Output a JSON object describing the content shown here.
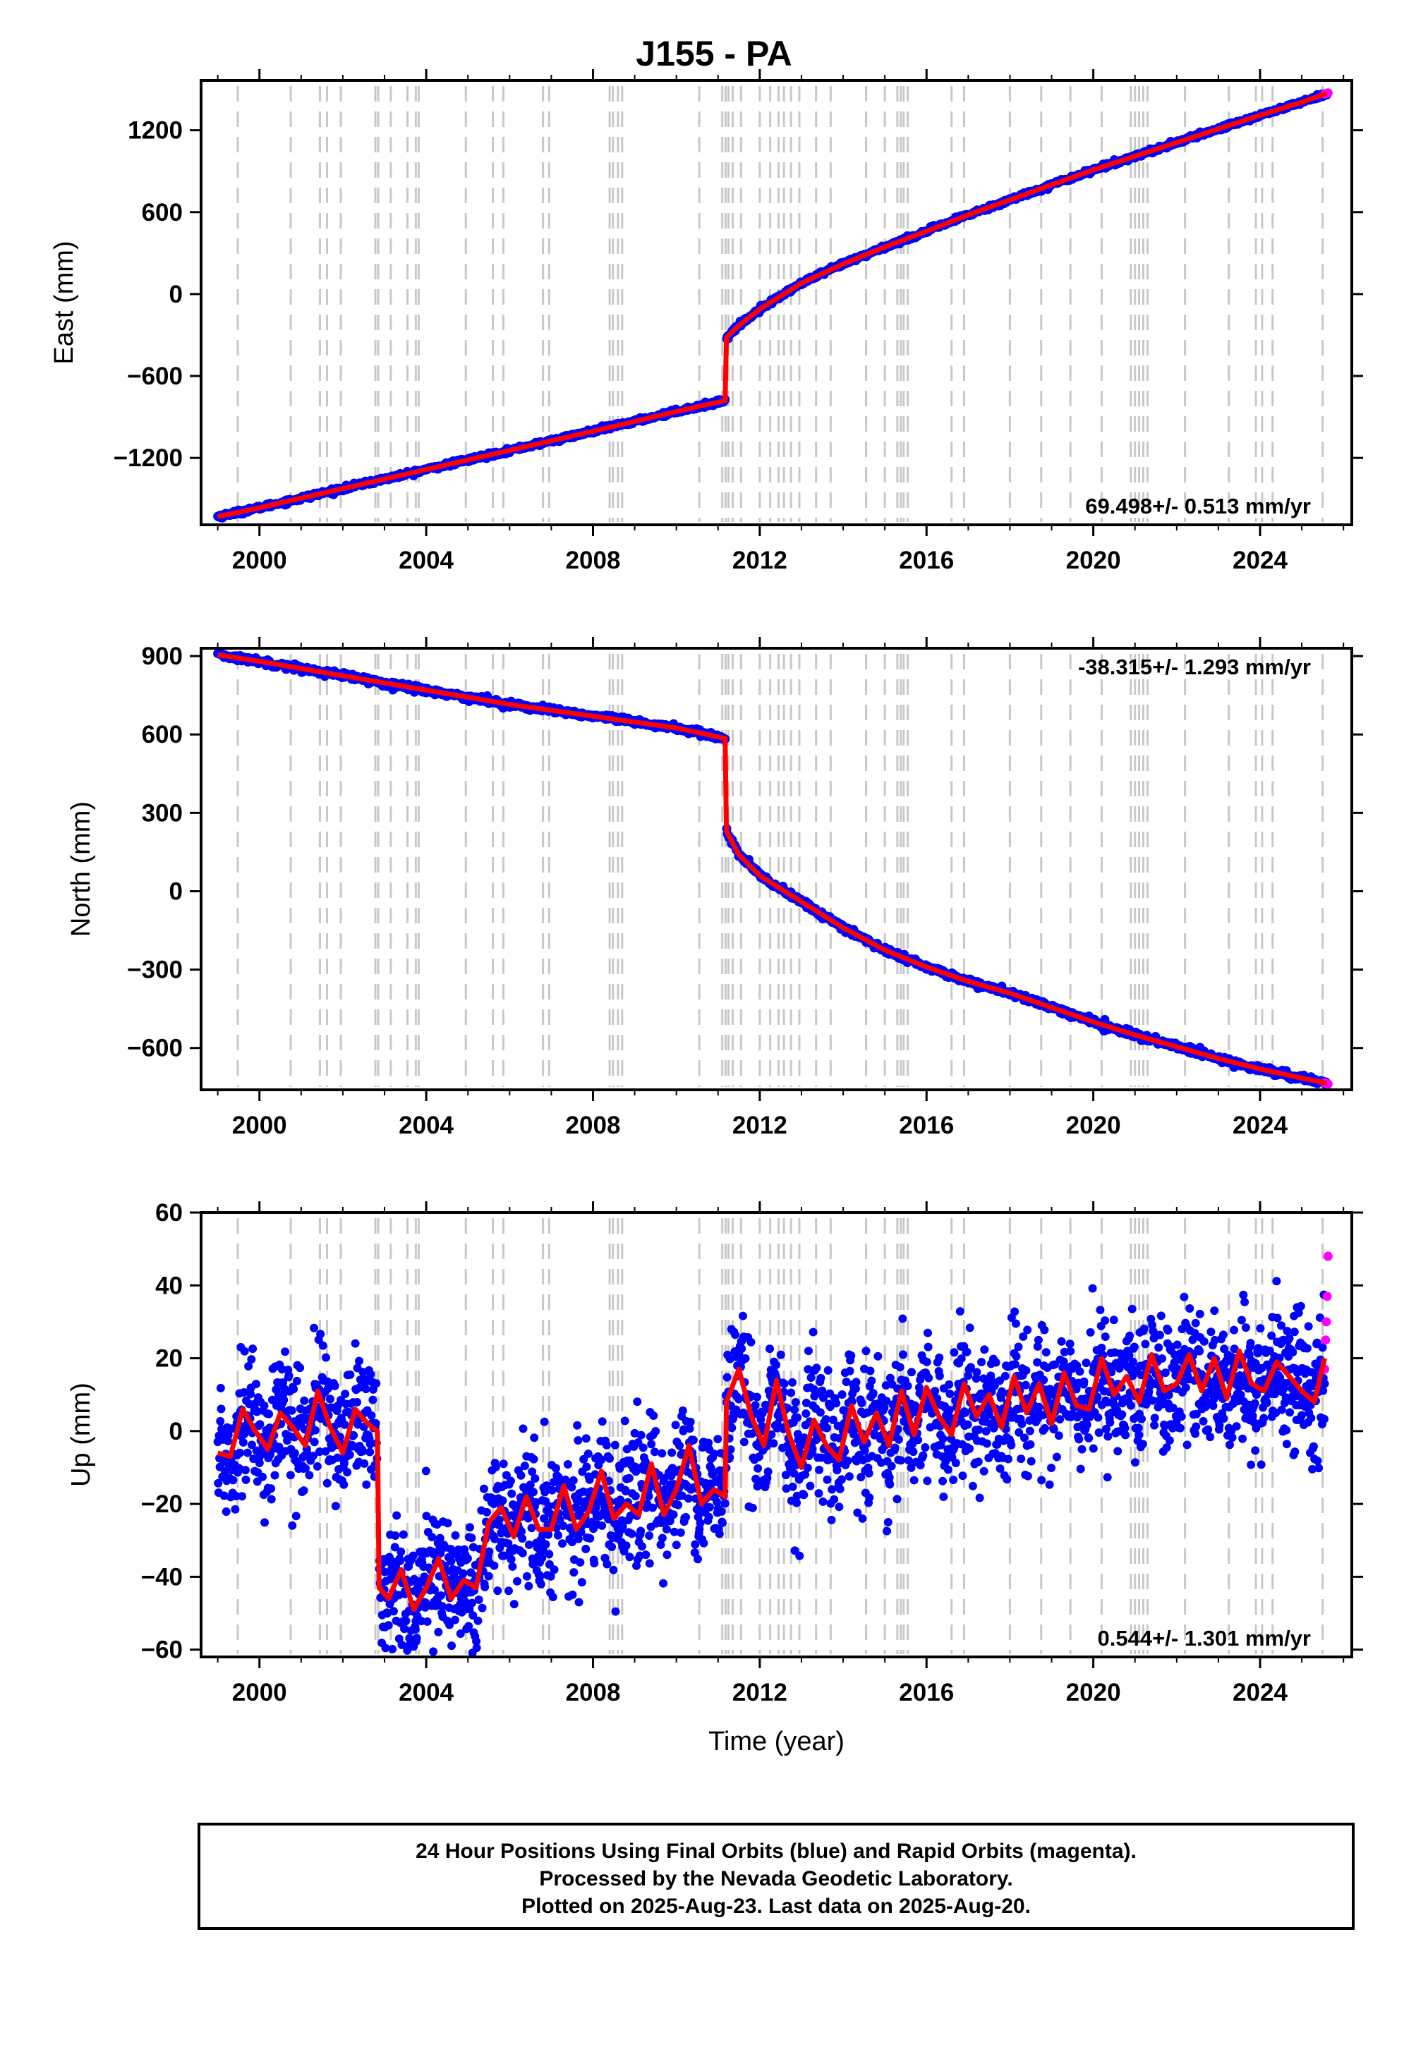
{
  "title": "J155 - PA",
  "footer": {
    "line1": "24 Hour Positions Using Final Orbits (blue) and Rapid Orbits (magenta).",
    "line2": "Processed by the Nevada Geodetic Laboratory.",
    "line3": "Plotted on 2025-Aug-23. Last data on 2025-Aug-20."
  },
  "colors": {
    "final_orbits": "#0000ff",
    "rapid_orbits": "#ff00ff",
    "model": "#ff0000",
    "event_lines": "#c8c8c8"
  },
  "chart_data": [
    {
      "type": "scatter",
      "panel": "east",
      "ylabel": "East (mm)",
      "xlim": [
        1998.6,
        2026.2
      ],
      "ylim": [
        -1690,
        1565
      ],
      "xticks": [
        2000,
        2004,
        2008,
        2012,
        2016,
        2020,
        2024
      ],
      "yticks": [
        -1200,
        -600,
        0,
        600,
        1200
      ],
      "tick_labels": {
        "x": [
          "2000",
          "2004",
          "2008",
          "2012",
          "2016",
          "2020",
          "2024"
        ],
        "y": [
          "−1200",
          "−600",
          "0",
          "600",
          "1200"
        ]
      },
      "rate": "69.498+/- 0.513 mm/yr",
      "rate_position": "bottom-right",
      "series": [
        {
          "color": "blue",
          "x": [
            1999.0,
            2000.0,
            2002.0,
            2004.0,
            2006.0,
            2008.0,
            2010.0,
            2011.17,
            2011.2,
            2011.5,
            2012.0,
            2013.0,
            2014.0,
            2015.0,
            2016.0,
            2017.0,
            2018.0,
            2019.0,
            2020.0,
            2021.0,
            2022.0,
            2023.0,
            2024.0,
            2025.0,
            2025.6
          ],
          "y": [
            -1630,
            -1565,
            -1425,
            -1285,
            -1145,
            -1005,
            -860,
            -780,
            -320,
            -230,
            -110,
            80,
            220,
            345,
            460,
            580,
            690,
            800,
            910,
            1010,
            1110,
            1210,
            1310,
            1405,
            1470
          ]
        },
        {
          "color": "red",
          "x": [
            1999.0,
            2000.0,
            2002.0,
            2004.0,
            2006.0,
            2008.0,
            2010.0,
            2011.17,
            2011.2,
            2011.5,
            2012.0,
            2013.0,
            2014.0,
            2015.0,
            2016.0,
            2017.0,
            2018.0,
            2019.0,
            2020.0,
            2021.0,
            2022.0,
            2023.0,
            2024.0,
            2025.0,
            2025.6
          ],
          "y": [
            -1630,
            -1565,
            -1425,
            -1285,
            -1145,
            -1005,
            -860,
            -780,
            -320,
            -230,
            -110,
            80,
            220,
            345,
            460,
            580,
            690,
            800,
            910,
            1010,
            1110,
            1210,
            1310,
            1405,
            1470
          ]
        },
        {
          "color": "magenta",
          "x": [
            2025.55,
            2025.58,
            2025.61,
            2025.63
          ],
          "y": [
            1466,
            1468,
            1471,
            1473
          ]
        }
      ]
    },
    {
      "type": "scatter",
      "panel": "north",
      "ylabel": "North (mm)",
      "xlim": [
        1998.6,
        2026.2
      ],
      "ylim": [
        -760,
        930
      ],
      "xticks": [
        2000,
        2004,
        2008,
        2012,
        2016,
        2020,
        2024
      ],
      "yticks": [
        -600,
        -300,
        0,
        300,
        600,
        900
      ],
      "tick_labels": {
        "x": [
          "2000",
          "2004",
          "2008",
          "2012",
          "2016",
          "2020",
          "2024"
        ],
        "y": [
          "−600",
          "−300",
          "0",
          "300",
          "600",
          "900"
        ]
      },
      "rate": "-38.315+/- 1.293 mm/yr",
      "rate_position": "top-right",
      "series": [
        {
          "color": "blue",
          "x": [
            1999.0,
            2000.0,
            2002.0,
            2004.0,
            2006.0,
            2008.0,
            2010.0,
            2011.17,
            2011.2,
            2011.5,
            2012.0,
            2013.0,
            2014.0,
            2015.0,
            2016.0,
            2017.0,
            2018.0,
            2019.0,
            2020.0,
            2021.0,
            2022.0,
            2023.0,
            2024.0,
            2025.0,
            2025.6
          ],
          "y": [
            905,
            880,
            825,
            770,
            715,
            670,
            625,
            585,
            230,
            140,
            60,
            -40,
            -140,
            -225,
            -290,
            -345,
            -390,
            -445,
            -500,
            -550,
            -595,
            -640,
            -680,
            -715,
            -735
          ]
        },
        {
          "color": "red",
          "x": [
            1999.0,
            2000.0,
            2002.0,
            2004.0,
            2006.0,
            2008.0,
            2010.0,
            2011.17,
            2011.2,
            2011.5,
            2012.0,
            2013.0,
            2014.0,
            2015.0,
            2016.0,
            2017.0,
            2018.0,
            2019.0,
            2020.0,
            2021.0,
            2022.0,
            2023.0,
            2024.0,
            2025.0,
            2025.6
          ],
          "y": [
            905,
            880,
            825,
            770,
            715,
            670,
            625,
            585,
            230,
            140,
            60,
            -40,
            -140,
            -225,
            -290,
            -345,
            -390,
            -445,
            -500,
            -550,
            -595,
            -640,
            -680,
            -715,
            -735
          ]
        },
        {
          "color": "magenta",
          "x": [
            2025.55,
            2025.58,
            2025.61,
            2025.63
          ],
          "y": [
            -733,
            -735,
            -737,
            -738
          ]
        }
      ]
    },
    {
      "type": "scatter",
      "panel": "up",
      "ylabel": "Up (mm)",
      "xlabel": "Time (year)",
      "xlim": [
        1998.6,
        2026.2
      ],
      "ylim": [
        -62,
        60
      ],
      "xticks": [
        2000,
        2004,
        2008,
        2012,
        2016,
        2020,
        2024
      ],
      "yticks": [
        -60,
        -40,
        -20,
        0,
        20,
        40,
        60
      ],
      "tick_labels": {
        "x": [
          "2000",
          "2004",
          "2008",
          "2012",
          "2016",
          "2020",
          "2024"
        ],
        "y": [
          "−60",
          "−40",
          "−20",
          "0",
          "20",
          "40",
          "60"
        ]
      },
      "rate": "0.544+/- 1.301 mm/yr",
      "rate_position": "bottom-right",
      "series": [
        {
          "color": "blue",
          "x": [
            1999.0,
            1999.3,
            1999.6,
            1999.9,
            2000.2,
            2000.5,
            2000.8,
            2001.1,
            2001.4,
            2001.7,
            2002.0,
            2002.3,
            2002.6,
            2002.83,
            2002.87,
            2003.1,
            2003.4,
            2003.7,
            2004.0,
            2004.3,
            2004.6,
            2004.9,
            2005.2,
            2005.5,
            2005.8,
            2006.1,
            2006.4,
            2006.7,
            2007.0,
            2007.3,
            2007.6,
            2007.9,
            2008.2,
            2008.5,
            2008.8,
            2009.1,
            2009.4,
            2009.7,
            2010.0,
            2010.3,
            2010.6,
            2010.9,
            2011.17,
            2011.2,
            2011.5,
            2011.8,
            2012.1,
            2012.4,
            2012.7,
            2013.0,
            2013.3,
            2013.6,
            2013.9,
            2014.2,
            2014.5,
            2014.8,
            2015.1,
            2015.4,
            2015.7,
            2016.0,
            2016.3,
            2016.6,
            2016.9,
            2017.2,
            2017.5,
            2017.8,
            2018.1,
            2018.4,
            2018.7,
            2019.0,
            2019.3,
            2019.6,
            2019.9,
            2020.2,
            2020.5,
            2020.8,
            2021.1,
            2021.4,
            2021.7,
            2022.0,
            2022.3,
            2022.6,
            2022.9,
            2023.2,
            2023.5,
            2023.8,
            2024.1,
            2024.4,
            2024.7,
            2025.0,
            2025.3,
            2025.55
          ],
          "y": [
            -5,
            -8,
            5,
            2,
            -6,
            6,
            3,
            -5,
            10,
            2,
            -5,
            8,
            3,
            0,
            -42,
            -45,
            -38,
            -48,
            -42,
            -36,
            -45,
            -40,
            -43,
            -28,
            -22,
            -28,
            -20,
            -26,
            -26,
            -18,
            -25,
            -20,
            -14,
            -24,
            -18,
            -22,
            -12,
            -22,
            -15,
            -8,
            -20,
            -14,
            -18,
            5,
            15,
            2,
            -5,
            12,
            -2,
            -10,
            3,
            -5,
            -8,
            6,
            -4,
            5,
            -5,
            10,
            -2,
            12,
            3,
            -2,
            12,
            3,
            8,
            0,
            14,
            4,
            12,
            2,
            14,
            6,
            6,
            18,
            8,
            14,
            8,
            20,
            10,
            12,
            18,
            10,
            18,
            8,
            20,
            12,
            10,
            18,
            14,
            12,
            8,
            18
          ]
        },
        {
          "color": "red",
          "x": [
            1999.0,
            1999.3,
            1999.6,
            1999.9,
            2000.2,
            2000.5,
            2000.8,
            2001.1,
            2001.4,
            2001.7,
            2002.0,
            2002.3,
            2002.6,
            2002.83,
            2002.87,
            2003.1,
            2003.4,
            2003.7,
            2004.0,
            2004.3,
            2004.6,
            2004.9,
            2005.2,
            2005.5,
            2005.8,
            2006.1,
            2006.4,
            2006.7,
            2007.0,
            2007.3,
            2007.6,
            2007.9,
            2008.2,
            2008.5,
            2008.8,
            2009.1,
            2009.4,
            2009.7,
            2010.0,
            2010.3,
            2010.6,
            2010.9,
            2011.17,
            2011.2,
            2011.5,
            2011.8,
            2012.1,
            2012.4,
            2012.7,
            2013.0,
            2013.3,
            2013.6,
            2013.9,
            2014.2,
            2014.5,
            2014.8,
            2015.1,
            2015.4,
            2015.7,
            2016.0,
            2016.3,
            2016.6,
            2016.9,
            2017.2,
            2017.5,
            2017.8,
            2018.1,
            2018.4,
            2018.7,
            2019.0,
            2019.3,
            2019.6,
            2019.9,
            2020.2,
            2020.5,
            2020.8,
            2021.1,
            2021.4,
            2021.7,
            2022.0,
            2022.3,
            2022.6,
            2022.9,
            2023.2,
            2023.5,
            2023.8,
            2024.1,
            2024.4,
            2024.7,
            2025.0,
            2025.3,
            2025.55
          ],
          "y": [
            -6,
            -7,
            6,
            0,
            -5,
            5,
            1,
            -4,
            11,
            1,
            -6,
            6,
            2,
            0,
            -43,
            -46,
            -38,
            -49,
            -43,
            -35,
            -46,
            -41,
            -43,
            -25,
            -21,
            -29,
            -18,
            -27,
            -27,
            -15,
            -27,
            -22,
            -11,
            -24,
            -20,
            -23,
            -9,
            -23,
            -16,
            -4,
            -20,
            -16,
            -18,
            8,
            17,
            4,
            -4,
            14,
            -1,
            -10,
            3,
            -4,
            -8,
            7,
            -3,
            5,
            -4,
            11,
            -1,
            12,
            4,
            -1,
            13,
            4,
            10,
            1,
            15,
            5,
            13,
            2,
            16,
            7,
            6,
            20,
            10,
            15,
            8,
            21,
            11,
            13,
            21,
            11,
            20,
            9,
            22,
            13,
            11,
            19,
            15,
            11,
            8,
            20
          ]
        },
        {
          "color": "magenta",
          "x": [
            2025.55,
            2025.57,
            2025.59,
            2025.61,
            2025.63
          ],
          "y": [
            17,
            25,
            30,
            37,
            48
          ]
        }
      ]
    }
  ]
}
